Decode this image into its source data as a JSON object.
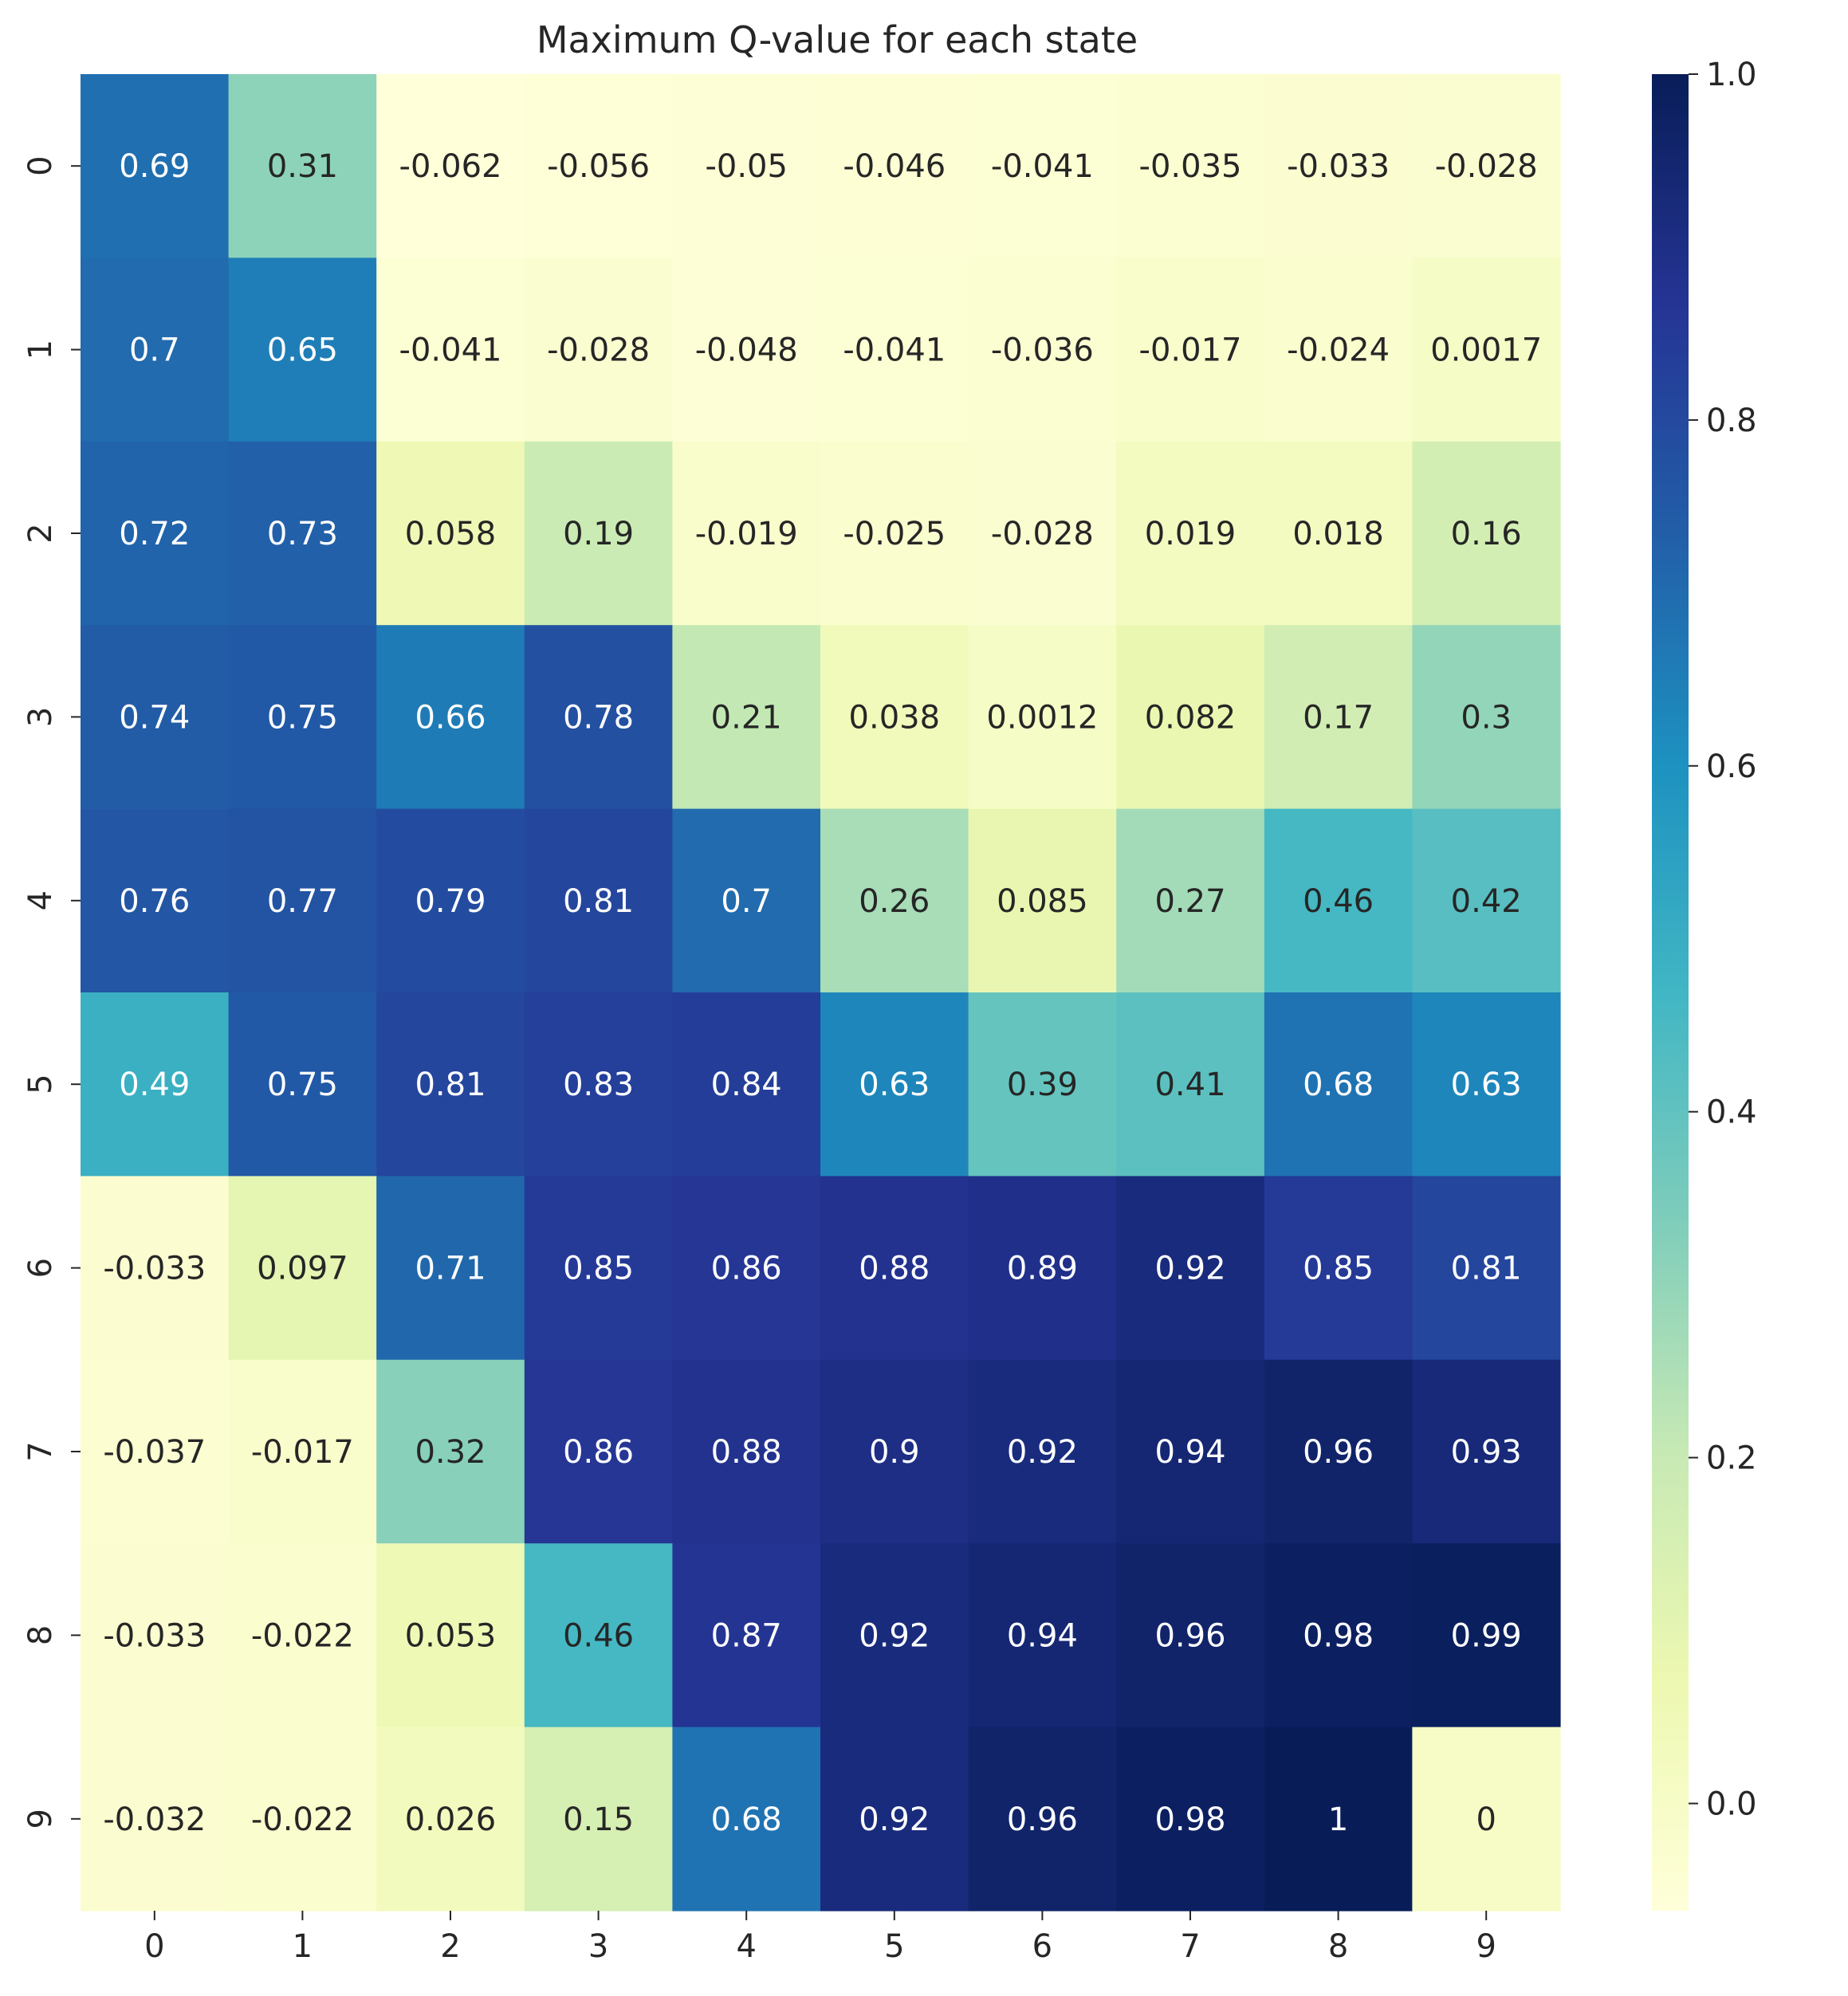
{
  "chart_data": {
    "type": "heatmap",
    "title": "Maximum Q-value for each state",
    "xlabel": "",
    "ylabel": "",
    "x_tick_labels": [
      "0",
      "1",
      "2",
      "3",
      "4",
      "5",
      "6",
      "7",
      "8",
      "9"
    ],
    "y_tick_labels": [
      "0",
      "1",
      "2",
      "3",
      "4",
      "5",
      "6",
      "7",
      "8",
      "9"
    ],
    "cell_labels": [
      [
        "0.69",
        "0.31",
        "-0.062",
        "-0.056",
        "-0.05",
        "-0.046",
        "-0.041",
        "-0.035",
        "-0.033",
        "-0.028"
      ],
      [
        "0.7",
        "0.65",
        "-0.041",
        "-0.028",
        "-0.048",
        "-0.041",
        "-0.036",
        "-0.017",
        "-0.024",
        "0.0017"
      ],
      [
        "0.72",
        "0.73",
        "0.058",
        "0.19",
        "-0.019",
        "-0.025",
        "-0.028",
        "0.019",
        "0.018",
        "0.16"
      ],
      [
        "0.74",
        "0.75",
        "0.66",
        "0.78",
        "0.21",
        "0.038",
        "0.0012",
        "0.082",
        "0.17",
        "0.3"
      ],
      [
        "0.76",
        "0.77",
        "0.79",
        "0.81",
        "0.7",
        "0.26",
        "0.085",
        "0.27",
        "0.46",
        "0.42"
      ],
      [
        "0.49",
        "0.75",
        "0.81",
        "0.83",
        "0.84",
        "0.63",
        "0.39",
        "0.41",
        "0.68",
        "0.63"
      ],
      [
        "-0.033",
        "0.097",
        "0.71",
        "0.85",
        "0.86",
        "0.88",
        "0.89",
        "0.92",
        "0.85",
        "0.81"
      ],
      [
        "-0.037",
        "-0.017",
        "0.32",
        "0.86",
        "0.88",
        "0.9",
        "0.92",
        "0.94",
        "0.96",
        "0.93"
      ],
      [
        "-0.033",
        "-0.022",
        "0.053",
        "0.46",
        "0.87",
        "0.92",
        "0.94",
        "0.96",
        "0.98",
        "0.99"
      ],
      [
        "-0.032",
        "-0.022",
        "0.026",
        "0.15",
        "0.68",
        "0.92",
        "0.96",
        "0.98",
        "1",
        "0"
      ]
    ],
    "colorbar": {
      "vmin": -0.062,
      "vmax": 1.0,
      "ticks": [
        0.0,
        0.2,
        0.4,
        0.6,
        0.8,
        1.0
      ],
      "tick_labels": [
        "0.0",
        "0.2",
        "0.4",
        "0.6",
        "0.8",
        "1.0"
      ]
    },
    "colormap": "YlGnBu",
    "colormap_stops": [
      "#ffffd9",
      "#edf8b1",
      "#c7e9b4",
      "#7fcdbb",
      "#41b6c4",
      "#1d91c0",
      "#225ea8",
      "#253494",
      "#081d58"
    ],
    "annotation_text_colors": {
      "light": "#ffffff",
      "dark": "#262626"
    }
  }
}
